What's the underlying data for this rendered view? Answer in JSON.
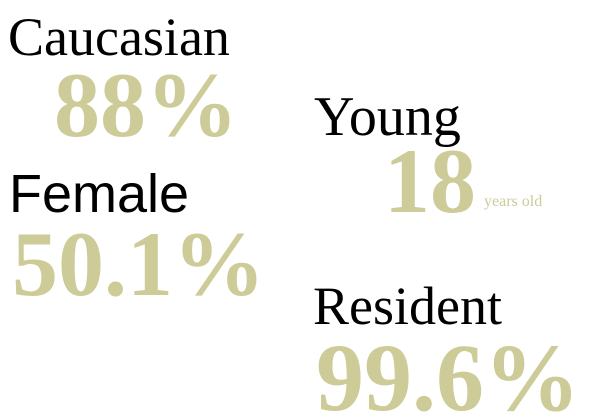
{
  "items": [
    {
      "label": "Caucasian",
      "value": "88%"
    },
    {
      "label": "Young",
      "value": "18",
      "unit": "years old"
    },
    {
      "label": "Female",
      "value": "50.1%"
    },
    {
      "label": "Resident",
      "value": "99.6%"
    }
  ]
}
